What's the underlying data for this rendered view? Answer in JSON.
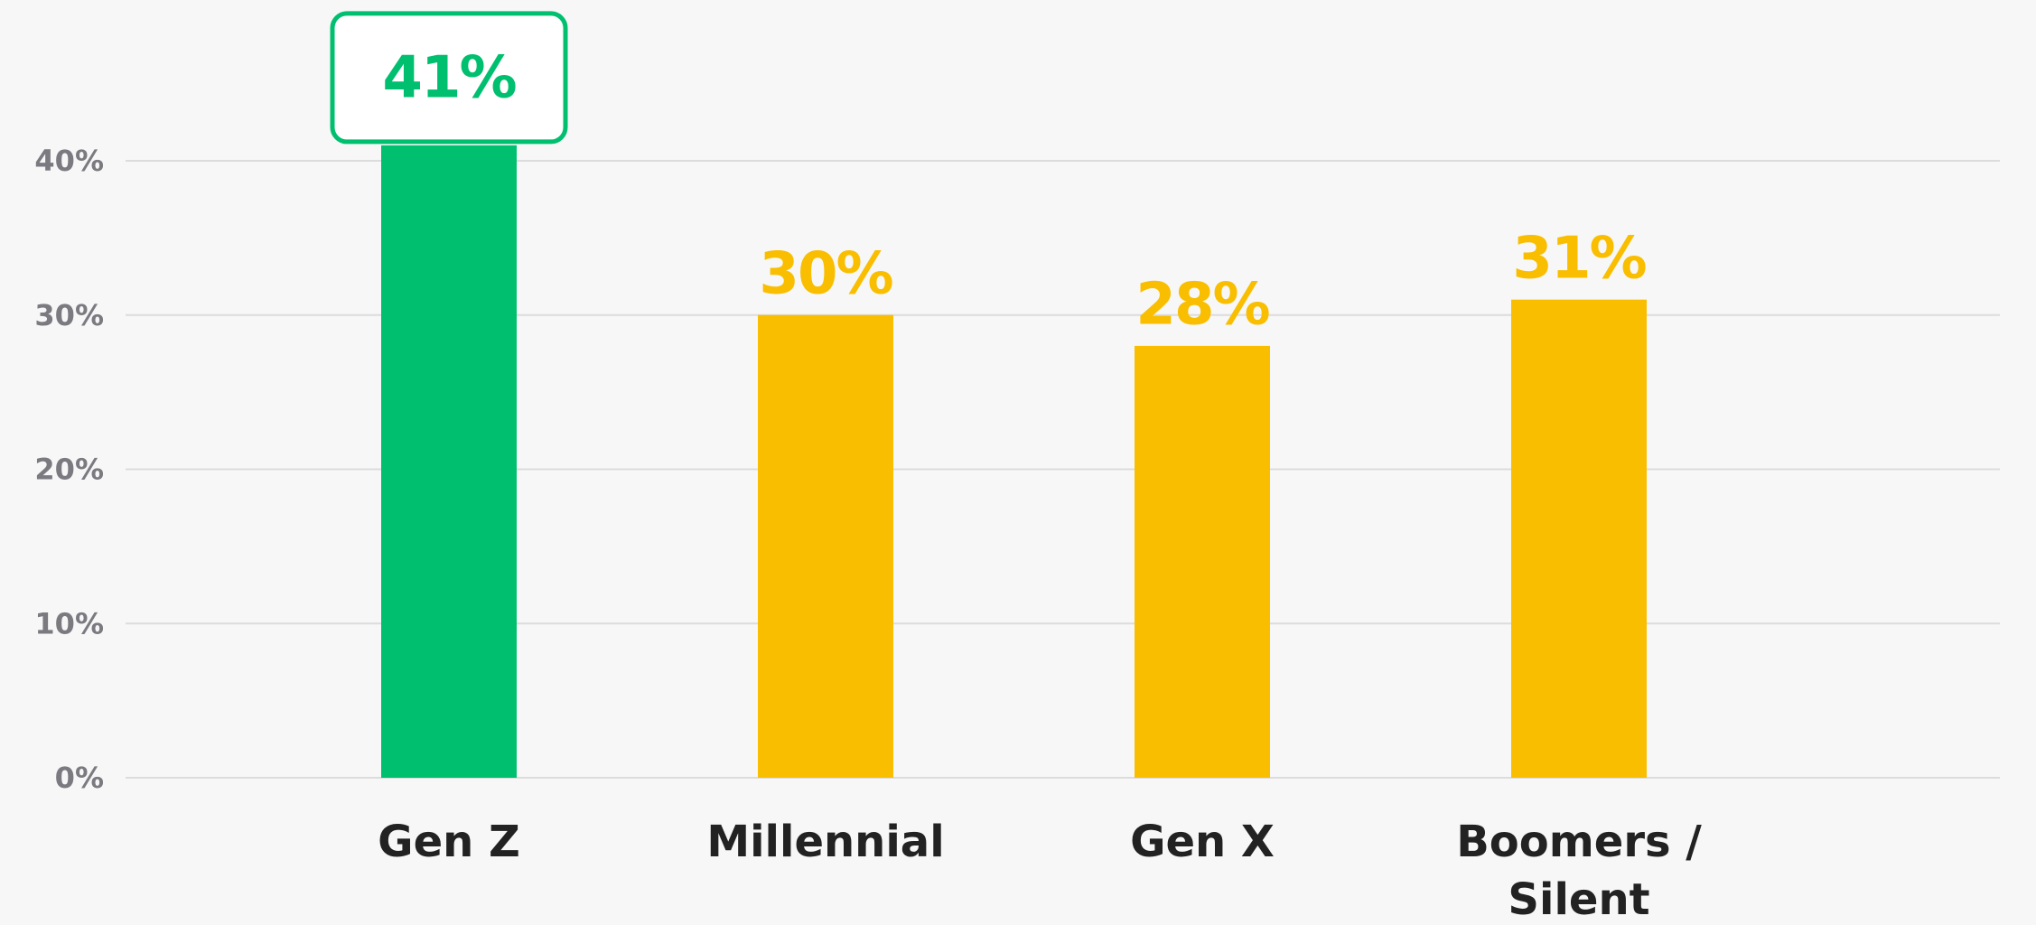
{
  "chart_data": {
    "type": "bar",
    "categories": [
      "Gen Z",
      "Millennial",
      "Gen X",
      "Boomers / Silent"
    ],
    "values": [
      41,
      30,
      28,
      31
    ],
    "value_labels": [
      "41%",
      "30%",
      "28%",
      "31%"
    ],
    "colors": [
      "#00bf6f",
      "#f9be00",
      "#f9be00",
      "#f9be00"
    ],
    "highlight": "Gen Z",
    "ylim": [
      0,
      40
    ],
    "yticks": [
      {
        "value": 0,
        "label": "0%"
      },
      {
        "value": 10,
        "label": "10%"
      },
      {
        "value": 20,
        "label": "20%"
      },
      {
        "value": 30,
        "label": "30%"
      },
      {
        "value": 40,
        "label": "40%"
      }
    ],
    "grid": true
  }
}
